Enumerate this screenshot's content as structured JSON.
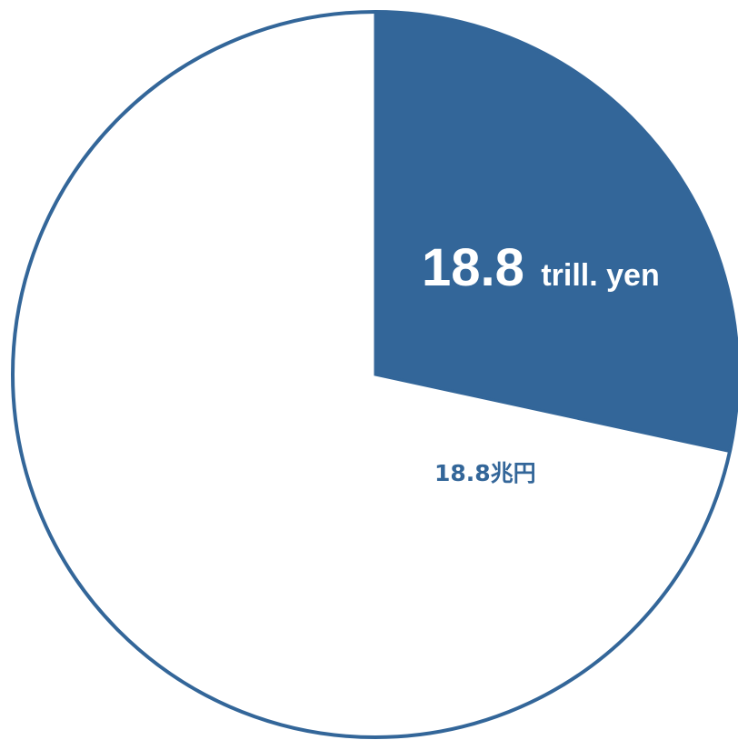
{
  "chart_data": {
    "type": "pie",
    "slices": [
      {
        "value": 28.4,
        "color": "#336699",
        "label_number": "18.8",
        "label_unit": "trill. yen"
      },
      {
        "value": 71.6,
        "color": "#ffffff"
      }
    ],
    "annotation": "18.8兆円",
    "outline_color": "#336699",
    "start_angle_deg": 0,
    "direction": "clockwise"
  }
}
